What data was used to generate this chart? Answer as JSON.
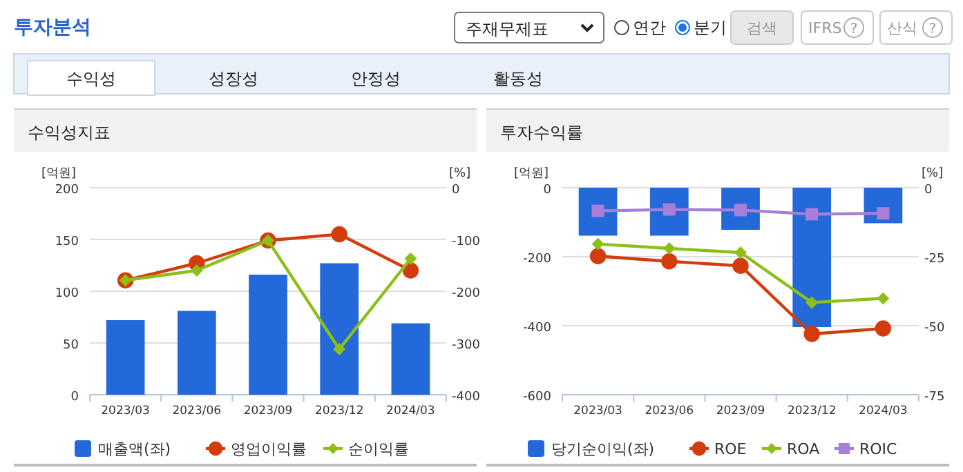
{
  "chart_data": [
    {
      "type": "other",
      "title": "투자분석",
      "annotations": [
        "주재무제표",
        "연간",
        "분기",
        "검색",
        "IFRS",
        "?",
        "산식",
        "?",
        "수익성",
        "성장성",
        "안정성",
        "활동성"
      ]
    },
    {
      "type": "bar",
      "title": "수익성지표",
      "categories": [
        "2023/03",
        "2023/06",
        "2023/09",
        "2023/12",
        "2024/03"
      ],
      "ylabel": "[억원]",
      "y2label": "[%]",
      "ylim": [
        0,
        200
      ],
      "yticks": [
        0,
        50,
        100,
        150,
        200
      ],
      "y2lim": [
        -400,
        0
      ],
      "y2ticks": [
        -400,
        -300,
        -200,
        -100,
        0
      ],
      "grid": "y",
      "legend": "bottom",
      "series": [
        {
          "name": "매출액(좌)",
          "type": "bar",
          "color": "#2369d9",
          "values": [
            72,
            81,
            116,
            127,
            69
          ]
        },
        {
          "name": "영업이익률",
          "type": "line",
          "axis": "y2",
          "marker": "circle",
          "color": "#d33c0c",
          "values": [
            -179,
            -146,
            -102,
            -90,
            -160
          ]
        },
        {
          "name": "순이익률",
          "type": "line",
          "axis": "y2",
          "marker": "diamond",
          "color": "#8cbf1a",
          "values": [
            -179,
            -160,
            -102,
            -312,
            -137
          ]
        }
      ]
    },
    {
      "type": "bar",
      "title": "투자수익률",
      "categories": [
        "2023/03",
        "2023/06",
        "2023/09",
        "2023/12",
        "2024/03"
      ],
      "ylabel": "[억원]",
      "y2label": "[%]",
      "ylim": [
        -600,
        0
      ],
      "yticks": [
        -600,
        -400,
        -200,
        0
      ],
      "y2lim": [
        -75,
        0
      ],
      "y2ticks": [
        -75,
        -50,
        -25,
        0
      ],
      "grid": "y",
      "legend": "bottom",
      "series": [
        {
          "name": "당기순이익(좌)",
          "type": "bar",
          "color": "#2369d9",
          "values": [
            -139,
            -139,
            -122,
            -404,
            -103
          ]
        },
        {
          "name": "ROE",
          "type": "line",
          "axis": "y2",
          "marker": "circle",
          "color": "#d33c0c",
          "values": [
            -24.8,
            -26.7,
            -28.3,
            -53,
            -51
          ]
        },
        {
          "name": "ROA",
          "type": "line",
          "axis": "y2",
          "marker": "diamond",
          "color": "#8cbf1a",
          "values": [
            -20.4,
            -22,
            -23.5,
            -41.6,
            -40.1
          ]
        },
        {
          "name": "ROIC",
          "type": "line",
          "axis": "y2",
          "marker": "square",
          "color": "#a77fd8",
          "values": [
            -8.4,
            -7.9,
            -8.1,
            -9.6,
            -9.3
          ]
        }
      ]
    }
  ]
}
